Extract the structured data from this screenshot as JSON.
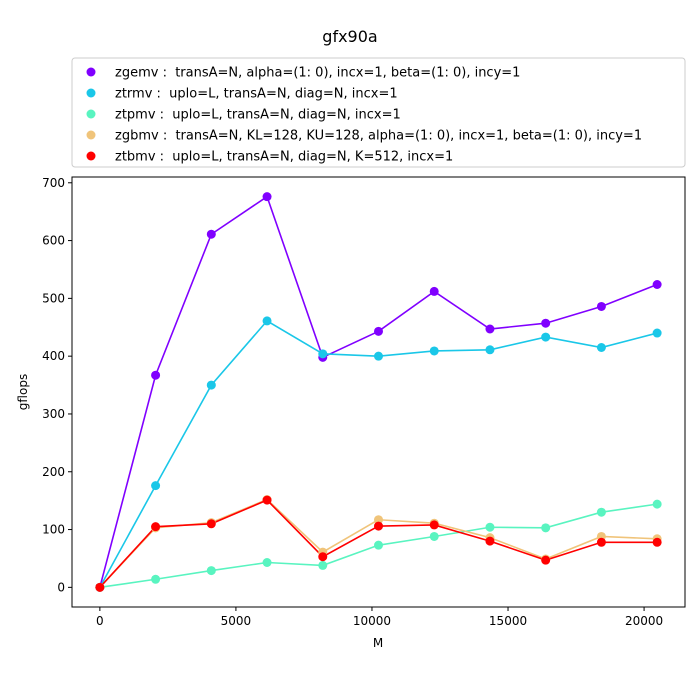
{
  "chart_data": {
    "type": "line",
    "title": "gfx90a",
    "xlabel": "M",
    "ylabel": "gflops",
    "xlim": [
      -1024,
      21504
    ],
    "ylim": [
      -34,
      710
    ],
    "xticks": [
      0,
      5000,
      10000,
      15000,
      20000
    ],
    "yticks": [
      0,
      100,
      200,
      300,
      400,
      500,
      600,
      700
    ],
    "grid": false,
    "legend_position": "top, above plot",
    "x": [
      0,
      2048,
      4096,
      6144,
      8192,
      10240,
      12288,
      14336,
      16384,
      18432,
      20480
    ],
    "series": [
      {
        "name": "zgemv :  transA=N, alpha=(1: 0), incx=1, beta=(1: 0), incy=1",
        "color": "#8000ff",
        "values": [
          0,
          367,
          611,
          676,
          398,
          443,
          512,
          447,
          457,
          486,
          524
        ]
      },
      {
        "name": "ztrmv :  uplo=L, transA=N, diag=N, incx=1",
        "color": "#1ac7e8",
        "values": [
          0,
          176,
          350,
          461,
          404,
          400,
          409,
          411,
          433,
          415,
          440
        ]
      },
      {
        "name": "ztpmv :  uplo=L, transA=N, diag=N, incx=1",
        "color": "#59f4c0",
        "values": [
          0,
          14,
          29,
          43,
          38,
          73,
          88,
          104,
          103,
          130,
          144
        ]
      },
      {
        "name": "zgbmv :  transA=N, KL=128, KU=128, alpha=(1: 0), incx=1, beta=(1: 0), incy=1",
        "color": "#f0c47a",
        "values": [
          0,
          103,
          112,
          152,
          61,
          117,
          111,
          86,
          49,
          88,
          84
        ]
      },
      {
        "name": "ztbmv :  uplo=L, transA=N, diag=N, K=512, incx=1",
        "color": "#ff0000",
        "values": [
          0,
          105,
          110,
          151,
          53,
          106,
          108,
          80,
          47,
          78,
          78
        ]
      }
    ]
  }
}
